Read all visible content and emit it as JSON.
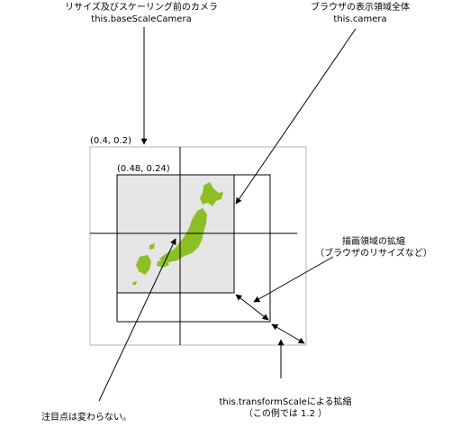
{
  "labels": {
    "base_camera_line1": "リサイズ及びスケーリング前のカメラ",
    "base_camera_line2": "this.baseScaleCamera",
    "camera_line1": "ブラウザの表示領域全体",
    "camera_line2": "this.camera",
    "outer_coord": "(0.4, 0.2)",
    "inner_coord": "(0.48, 0.24)",
    "expand_line1": "描画領域の拡縮",
    "expand_line2": "（ブラウザのリサイズなど）",
    "scale_line1": "this.transformScaleによる拡縮",
    "scale_line2": "（この例では 1.2 ）",
    "focus_note": "注目点は変わらない。"
  },
  "colors": {
    "map_fill": "#e6e6e6",
    "japan": "#8cbf26",
    "outer_frame": "#b3b3b3",
    "lines": "#000000"
  }
}
